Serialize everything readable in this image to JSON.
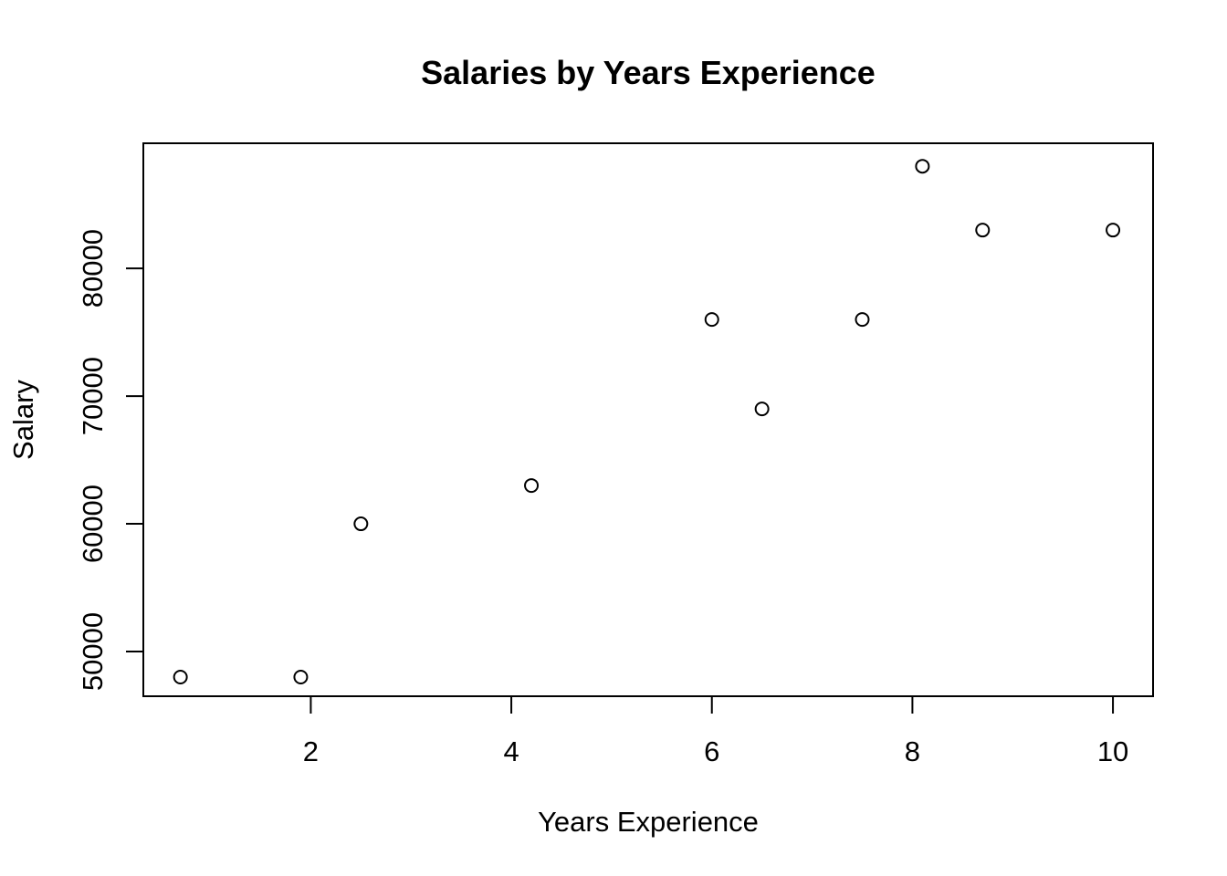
{
  "chart_data": {
    "type": "scatter",
    "title": "Salaries by Years Experience",
    "xlabel": "Years Experience",
    "ylabel": "Salary",
    "xlim": [
      0.33,
      10.4
    ],
    "ylim": [
      46500,
      89800
    ],
    "x_ticks": [
      2,
      4,
      6,
      8,
      10
    ],
    "x_tick_labels": [
      "2",
      "4",
      "6",
      "8",
      "10"
    ],
    "y_ticks": [
      50000,
      60000,
      70000,
      80000
    ],
    "y_tick_labels": [
      "50000",
      "60000",
      "70000",
      "80000"
    ],
    "grid": false,
    "legend": "none",
    "series": [
      {
        "x": [
          0.7,
          1.9,
          2.5,
          4.2,
          6.0,
          6.5,
          7.5,
          8.1,
          8.7,
          10.0
        ],
        "y": [
          48000,
          48000,
          60000,
          63000,
          76000,
          69000,
          76000,
          88000,
          83000,
          83000
        ]
      }
    ]
  }
}
